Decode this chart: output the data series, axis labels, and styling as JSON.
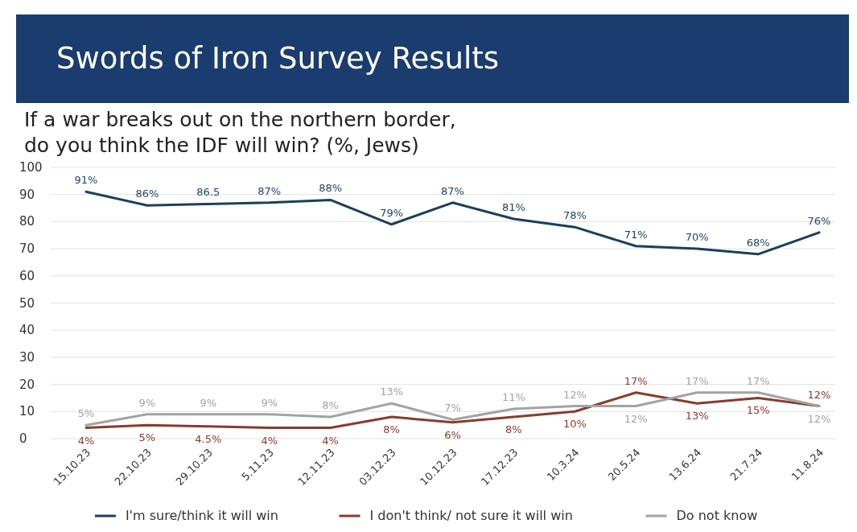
{
  "chart_data": {
    "type": "line",
    "title": "Swords of Iron Survey Results",
    "subtitle": "If a war breaks out on the northern border, do you think the IDF will win? (%, Jews)",
    "categories": [
      "15.10.23",
      "22.10.23",
      "29.10.23",
      "5.11.23",
      "12.11.23",
      "03.12.23",
      "10.12.23",
      "17.12.23",
      "10.3.24",
      "20.5.24",
      "13.6.24",
      "21.7.24",
      "11.8.24"
    ],
    "series": [
      {
        "name": "I'm sure/think it will win",
        "color": "#1b3f5e",
        "values": [
          91,
          86,
          86.5,
          87,
          88,
          79,
          87,
          81,
          78,
          71,
          70,
          68,
          76
        ],
        "value_labels": [
          "91%",
          "86%",
          "86.5",
          "87%",
          "88%",
          "79%",
          "87%",
          "81%",
          "78%",
          "71%",
          "70%",
          "68%",
          "76%"
        ]
      },
      {
        "name": "I don't think/ not sure it will win",
        "color": "#8b3a2e",
        "values": [
          4,
          5,
          4.5,
          4,
          4,
          8,
          6,
          8,
          10,
          17,
          13,
          15,
          12
        ],
        "value_labels": [
          "4%",
          "5%",
          "4.5%",
          "4%",
          "4%",
          "8%",
          "6%",
          "8%",
          "10%",
          "17%",
          "13%",
          "15%",
          "12%"
        ]
      },
      {
        "name": "Do not know",
        "color": "#a3a3a3",
        "values": [
          5,
          9,
          9,
          9,
          8,
          13,
          7,
          11,
          12,
          12,
          17,
          17,
          12
        ],
        "value_labels": [
          "5%",
          "9%",
          "9%",
          "9%",
          "8%",
          "13%",
          "7%",
          "11%",
          "12%",
          "12%",
          "17%",
          "17%",
          "12%"
        ]
      }
    ],
    "ylim": [
      0,
      100
    ],
    "yticks": [
      0,
      10,
      20,
      30,
      40,
      50,
      60,
      70,
      80,
      90,
      100
    ],
    "grid": "y",
    "legend": "bottom",
    "marker": "none",
    "line_style": "solid"
  }
}
